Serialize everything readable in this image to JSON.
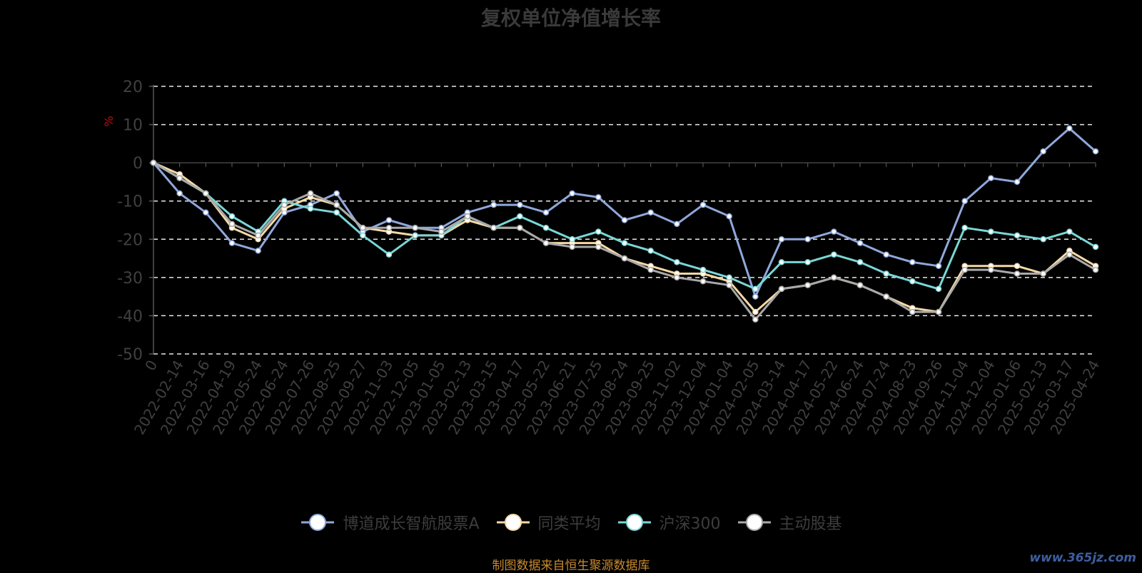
{
  "chart_data": {
    "type": "line",
    "title": "复权单位净值增长率",
    "ylabel": "%",
    "ylim": [
      -50,
      20
    ],
    "yticks": [
      20,
      10,
      0,
      -10,
      -20,
      -30,
      -40,
      -50
    ],
    "grid": true,
    "legend_position": "bottom",
    "x": [
      "0",
      "2022-02-14",
      "2022-03-16",
      "2022-04-19",
      "2022-05-24",
      "2022-06-24",
      "2022-07-26",
      "2022-08-25",
      "2022-09-27",
      "2022-11-03",
      "2022-12-05",
      "2023-01-05",
      "2023-02-13",
      "2023-03-15",
      "2023-04-17",
      "2023-05-22",
      "2023-06-21",
      "2023-07-25",
      "2023-08-24",
      "2023-09-25",
      "2023-11-02",
      "2023-12-04",
      "2024-01-04",
      "2024-02-05",
      "2024-03-14",
      "2024-04-17",
      "2024-05-22",
      "2024-06-24",
      "2024-07-24",
      "2024-08-23",
      "2024-09-26",
      "2024-11-04",
      "2024-12-04",
      "2025-01-06",
      "2025-02-13",
      "2025-03-17",
      "2025-04-24"
    ],
    "series": [
      {
        "name": "博道成长智航股票A",
        "color": "#8fa8dc",
        "values": [
          0,
          -8,
          -13,
          -21,
          -23,
          -13,
          -11,
          -8,
          -18,
          -15,
          -17,
          -17,
          -13,
          -11,
          -11,
          -13,
          -8,
          -9,
          -15,
          -13,
          -16,
          -11,
          -14,
          -35,
          -20,
          -20,
          -18,
          -21,
          -24,
          -26,
          -27,
          -10,
          -4,
          -5,
          3,
          9,
          3
        ]
      },
      {
        "name": "同类平均",
        "color": "#f5d9a6",
        "values": [
          0,
          -3,
          -8,
          -17,
          -20,
          -12,
          -9,
          -11,
          -17,
          -18,
          -19,
          -19,
          -15,
          -17,
          -17,
          -21,
          -21,
          -21,
          -25,
          -27,
          -29,
          -29,
          -31,
          -39,
          -33,
          -32,
          -30,
          -32,
          -35,
          -38,
          -39,
          -27,
          -27,
          -27,
          -29,
          -23,
          -27
        ]
      },
      {
        "name": "沪深300",
        "color": "#7ad6d6",
        "values": [
          0,
          -4,
          -8,
          -14,
          -18,
          -10,
          -12,
          -13,
          -19,
          -24,
          -19,
          -19,
          -14,
          -17,
          -14,
          -17,
          -20,
          -18,
          -21,
          -23,
          -26,
          -28,
          -30,
          -33,
          -26,
          -26,
          -24,
          -26,
          -29,
          -31,
          -33,
          -17,
          -18,
          -19,
          -20,
          -18,
          -22
        ]
      },
      {
        "name": "主动股基",
        "color": "#a9a9a9",
        "values": [
          0,
          -4,
          -8,
          -16,
          -19,
          -11,
          -8,
          -11,
          -17,
          -17,
          -17,
          -18,
          -14,
          -17,
          -17,
          -21,
          -22,
          -22,
          -25,
          -28,
          -30,
          -31,
          -32,
          -41,
          -33,
          -32,
          -30,
          -32,
          -35,
          -39,
          -39,
          -28,
          -28,
          -29,
          -29,
          -24,
          -28
        ]
      }
    ]
  },
  "source_note": "制图数据来自恒生聚源数据库",
  "watermark": "www.365jz.com"
}
